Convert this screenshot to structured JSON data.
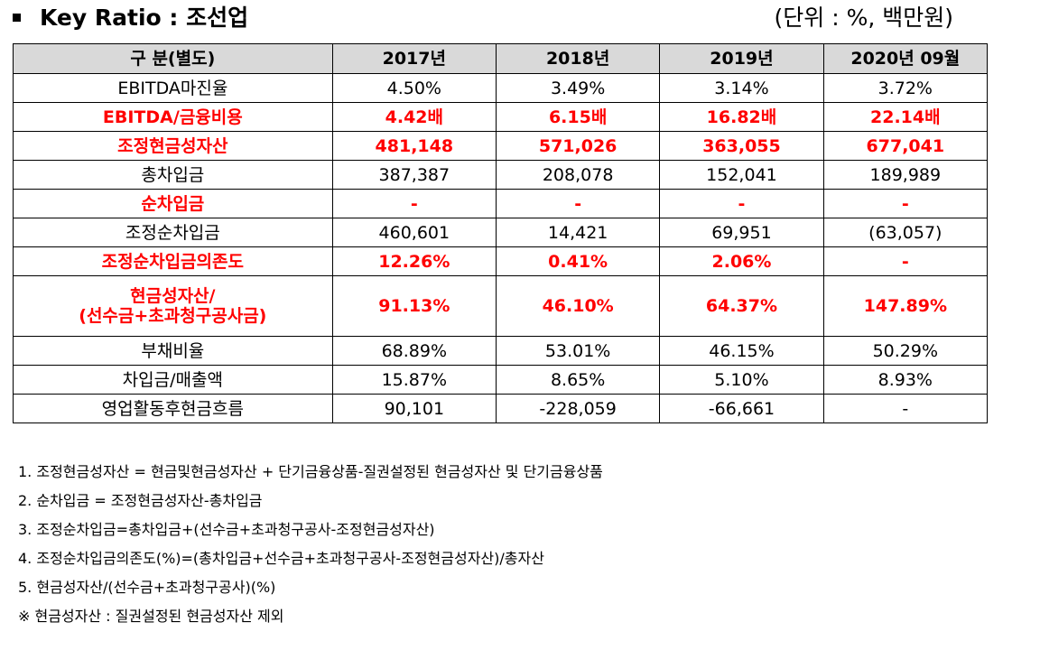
{
  "header": {
    "title": "Key Ratio : 조선업",
    "unit": "(단위 : %, 백만원)"
  },
  "table": {
    "columns": [
      "구 분(별도)",
      "2017년",
      "2018년",
      "2019년",
      "2020년 09월"
    ],
    "rows": [
      {
        "label": "EBITDA마진율",
        "values": [
          "4.50%",
          "3.49%",
          "3.14%",
          "3.72%"
        ],
        "highlight": false
      },
      {
        "label": "EBITDA/금융비용",
        "values": [
          "4.42배",
          "6.15배",
          "16.82배",
          "22.14배"
        ],
        "highlight": true
      },
      {
        "label": "조정현금성자산",
        "values": [
          "481,148",
          "571,026",
          "363,055",
          "677,041"
        ],
        "highlight": true
      },
      {
        "label": "총차입금",
        "values": [
          "387,387",
          "208,078",
          "152,041",
          "189,989"
        ],
        "highlight": false
      },
      {
        "label": "순차입금",
        "values": [
          "-",
          "-",
          "-",
          "-"
        ],
        "highlight": true
      },
      {
        "label": "조정순차입금",
        "values": [
          "460,601",
          "14,421",
          "69,951",
          "(63,057)"
        ],
        "highlight": false
      },
      {
        "label": "조정순차입금의존도",
        "values": [
          "12.26%",
          "0.41%",
          "2.06%",
          "-"
        ],
        "highlight": true
      },
      {
        "label_line1": "현금성자산/",
        "label_line2": "(선수금+초과청구공사금)",
        "values": [
          "91.13%",
          "46.10%",
          "64.37%",
          "147.89%"
        ],
        "highlight": true
      },
      {
        "label": "부채비율",
        "values": [
          "68.89%",
          "53.01%",
          "46.15%",
          "50.29%"
        ],
        "highlight": false
      },
      {
        "label": "차입금/매출액",
        "values": [
          "15.87%",
          "8.65%",
          "5.10%",
          "8.93%"
        ],
        "highlight": false
      },
      {
        "label": "영업활동후현금흐름",
        "values": [
          "90,101",
          "-228,059",
          "-66,661",
          "-"
        ],
        "highlight": false
      }
    ]
  },
  "notes": [
    "1. 조정현금성자산 = 현금및현금성자산 + 단기금융상품-질권설정된 현금성자산 및 단기금융상품",
    "2. 순차입금 = 조정현금성자산-총차입금",
    "3. 조정순차입금=총차입금+(선수금+초과청구공사-조정현금성자산)",
    "4. 조정순차입금의존도(%)=(총차입금+선수금+초과청구공사-조정현금성자산)/총자산",
    "5. 현금성자산/(선수금+초과청구공사)(%)",
    "※ 현금성자산 : 질권설정된 현금성자산 제외"
  ],
  "colors": {
    "header_bg": "#d9d9d9",
    "highlight": "#ff0000"
  }
}
